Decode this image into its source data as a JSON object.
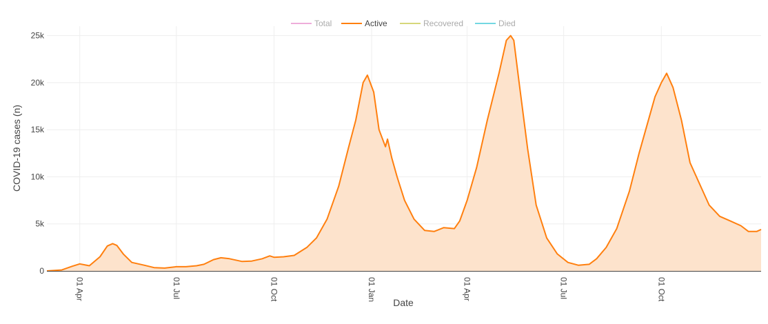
{
  "chart_data": {
    "type": "area",
    "xlabel": "Date",
    "ylabel": "COVID-19 cases (n)",
    "x_ticks": [
      "01 Apr",
      "01 Jul",
      "01 Oct",
      "01 Jan",
      "01 Apr",
      "01 Jul",
      "01 Oct"
    ],
    "y_ticks": [
      "0",
      "5k",
      "10k",
      "15k",
      "20k",
      "25k"
    ],
    "ylim": [
      0,
      26000
    ],
    "grid": true,
    "legend_placement": "top-center",
    "legend": [
      {
        "name": "Total",
        "color": "#e377c2",
        "active": false
      },
      {
        "name": "Active",
        "color": "#ff7f0e",
        "active": true
      },
      {
        "name": "Recovered",
        "color": "#bcbd22",
        "active": false
      },
      {
        "name": "Died",
        "color": "#17becf",
        "active": false
      }
    ],
    "series": [
      {
        "name": "Active",
        "color": "#ff7f0e",
        "fill": "#fde3cc",
        "points": [
          [
            "2020-03-01",
            0
          ],
          [
            "2020-03-15",
            100
          ],
          [
            "2020-03-25",
            500
          ],
          [
            "2020-04-01",
            750
          ],
          [
            "2020-04-10",
            550
          ],
          [
            "2020-04-20",
            1500
          ],
          [
            "2020-04-27",
            2650
          ],
          [
            "2020-05-02",
            2900
          ],
          [
            "2020-05-06",
            2700
          ],
          [
            "2020-05-12",
            1800
          ],
          [
            "2020-05-20",
            900
          ],
          [
            "2020-06-01",
            600
          ],
          [
            "2020-06-10",
            350
          ],
          [
            "2020-06-20",
            300
          ],
          [
            "2020-07-01",
            450
          ],
          [
            "2020-07-10",
            450
          ],
          [
            "2020-07-20",
            550
          ],
          [
            "2020-07-27",
            700
          ],
          [
            "2020-08-05",
            1200
          ],
          [
            "2020-08-12",
            1400
          ],
          [
            "2020-08-20",
            1300
          ],
          [
            "2020-09-01",
            1000
          ],
          [
            "2020-09-10",
            1050
          ],
          [
            "2020-09-20",
            1300
          ],
          [
            "2020-09-27",
            1600
          ],
          [
            "2020-10-01",
            1450
          ],
          [
            "2020-10-10",
            1500
          ],
          [
            "2020-10-20",
            1650
          ],
          [
            "2020-11-01",
            2500
          ],
          [
            "2020-11-10",
            3500
          ],
          [
            "2020-11-20",
            5500
          ],
          [
            "2020-12-01",
            9000
          ],
          [
            "2020-12-10",
            13000
          ],
          [
            "2020-12-17",
            16000
          ],
          [
            "2020-12-24",
            20000
          ],
          [
            "2020-12-28",
            20800
          ],
          [
            "2021-01-03",
            19000
          ],
          [
            "2021-01-08",
            15000
          ],
          [
            "2021-01-14",
            13200
          ],
          [
            "2021-01-16",
            14000
          ],
          [
            "2021-01-20",
            12000
          ],
          [
            "2021-01-25",
            10000
          ],
          [
            "2021-02-01",
            7500
          ],
          [
            "2021-02-10",
            5500
          ],
          [
            "2021-02-20",
            4300
          ],
          [
            "2021-03-01",
            4200
          ],
          [
            "2021-03-10",
            4600
          ],
          [
            "2021-03-20",
            4500
          ],
          [
            "2021-03-25",
            5300
          ],
          [
            "2021-04-01",
            7500
          ],
          [
            "2021-04-10",
            11000
          ],
          [
            "2021-04-20",
            16000
          ],
          [
            "2021-05-01",
            21000
          ],
          [
            "2021-05-08",
            24500
          ],
          [
            "2021-05-12",
            25000
          ],
          [
            "2021-05-15",
            24500
          ],
          [
            "2021-05-20",
            20000
          ],
          [
            "2021-05-28",
            13000
          ],
          [
            "2021-06-05",
            7000
          ],
          [
            "2021-06-15",
            3500
          ],
          [
            "2021-06-25",
            1800
          ],
          [
            "2021-07-05",
            900
          ],
          [
            "2021-07-15",
            600
          ],
          [
            "2021-07-25",
            700
          ],
          [
            "2021-08-01",
            1300
          ],
          [
            "2021-08-10",
            2500
          ],
          [
            "2021-08-20",
            4500
          ],
          [
            "2021-09-01",
            8500
          ],
          [
            "2021-09-10",
            12500
          ],
          [
            "2021-09-20",
            16500
          ],
          [
            "2021-09-25",
            18500
          ],
          [
            "2021-10-01",
            20000
          ],
          [
            "2021-10-06",
            21000
          ],
          [
            "2021-10-12",
            19500
          ],
          [
            "2021-10-20",
            16000
          ],
          [
            "2021-10-28",
            11500
          ],
          [
            "2021-11-05",
            9500
          ],
          [
            "2021-11-15",
            7000
          ],
          [
            "2021-11-25",
            5800
          ],
          [
            "2021-12-05",
            5300
          ],
          [
            "2021-12-15",
            4800
          ],
          [
            "2021-12-22",
            4200
          ],
          [
            "2021-12-30",
            4200
          ],
          [
            "2022-01-03",
            4400
          ]
        ]
      }
    ]
  }
}
